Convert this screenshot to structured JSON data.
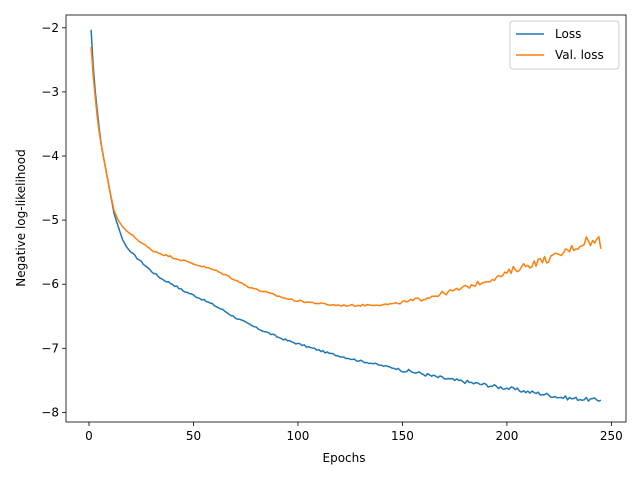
{
  "chart_data": {
    "type": "line",
    "title": "",
    "xlabel": "Epochs",
    "ylabel": "Negative log-likelihood",
    "xlim": [
      -11,
      257
    ],
    "ylim": [
      -8.15,
      -1.8
    ],
    "xticks": [
      0,
      50,
      100,
      150,
      200,
      250
    ],
    "yticks": [
      -8,
      -7,
      -6,
      -5,
      -4,
      -3,
      -2
    ],
    "grid": false,
    "legend_position": "top-right",
    "series": [
      {
        "name": "Loss",
        "color": "#1f77b4",
        "anchors": [
          [
            1,
            -2.03
          ],
          [
            2,
            -2.6
          ],
          [
            3,
            -3.0
          ],
          [
            4,
            -3.3
          ],
          [
            5,
            -3.6
          ],
          [
            6,
            -3.85
          ],
          [
            8,
            -4.2
          ],
          [
            10,
            -4.55
          ],
          [
            12,
            -4.9
          ],
          [
            14,
            -5.1
          ],
          [
            16,
            -5.3
          ],
          [
            18,
            -5.42
          ],
          [
            20,
            -5.5
          ],
          [
            25,
            -5.65
          ],
          [
            30,
            -5.8
          ],
          [
            35,
            -5.92
          ],
          [
            40,
            -6.0
          ],
          [
            45,
            -6.1
          ],
          [
            50,
            -6.17
          ],
          [
            55,
            -6.25
          ],
          [
            60,
            -6.33
          ],
          [
            65,
            -6.42
          ],
          [
            70,
            -6.52
          ],
          [
            75,
            -6.6
          ],
          [
            80,
            -6.68
          ],
          [
            85,
            -6.75
          ],
          [
            90,
            -6.82
          ],
          [
            95,
            -6.88
          ],
          [
            100,
            -6.93
          ],
          [
            105,
            -6.98
          ],
          [
            110,
            -7.03
          ],
          [
            115,
            -7.08
          ],
          [
            120,
            -7.12
          ],
          [
            125,
            -7.16
          ],
          [
            130,
            -7.2
          ],
          [
            135,
            -7.23
          ],
          [
            140,
            -7.27
          ],
          [
            145,
            -7.3
          ],
          [
            150,
            -7.34
          ],
          [
            155,
            -7.37
          ],
          [
            160,
            -7.4
          ],
          [
            165,
            -7.44
          ],
          [
            170,
            -7.47
          ],
          [
            175,
            -7.5
          ],
          [
            180,
            -7.52
          ],
          [
            185,
            -7.55
          ],
          [
            190,
            -7.57
          ],
          [
            195,
            -7.6
          ],
          [
            200,
            -7.62
          ],
          [
            205,
            -7.65
          ],
          [
            210,
            -7.68
          ],
          [
            215,
            -7.7
          ],
          [
            220,
            -7.73
          ],
          [
            225,
            -7.76
          ],
          [
            230,
            -7.78
          ],
          [
            235,
            -7.79
          ],
          [
            240,
            -7.8
          ],
          [
            245,
            -7.81
          ]
        ]
      },
      {
        "name": "Val. loss",
        "color": "#ff7f0e",
        "anchors": [
          [
            1,
            -2.3
          ],
          [
            2,
            -2.75
          ],
          [
            3,
            -3.1
          ],
          [
            4,
            -3.4
          ],
          [
            5,
            -3.65
          ],
          [
            6,
            -3.85
          ],
          [
            8,
            -4.2
          ],
          [
            10,
            -4.55
          ],
          [
            12,
            -4.85
          ],
          [
            14,
            -5.0
          ],
          [
            16,
            -5.1
          ],
          [
            18,
            -5.17
          ],
          [
            20,
            -5.22
          ],
          [
            25,
            -5.35
          ],
          [
            30,
            -5.47
          ],
          [
            35,
            -5.53
          ],
          [
            40,
            -5.58
          ],
          [
            45,
            -5.63
          ],
          [
            50,
            -5.68
          ],
          [
            55,
            -5.73
          ],
          [
            60,
            -5.78
          ],
          [
            65,
            -5.85
          ],
          [
            70,
            -5.93
          ],
          [
            75,
            -6.02
          ],
          [
            80,
            -6.08
          ],
          [
            85,
            -6.13
          ],
          [
            90,
            -6.18
          ],
          [
            95,
            -6.23
          ],
          [
            100,
            -6.26
          ],
          [
            105,
            -6.28
          ],
          [
            110,
            -6.3
          ],
          [
            115,
            -6.32
          ],
          [
            120,
            -6.33
          ],
          [
            125,
            -6.33
          ],
          [
            130,
            -6.33
          ],
          [
            135,
            -6.32
          ],
          [
            140,
            -6.32
          ],
          [
            145,
            -6.31
          ],
          [
            150,
            -6.29
          ],
          [
            155,
            -6.26
          ],
          [
            160,
            -6.22
          ],
          [
            165,
            -6.18
          ],
          [
            170,
            -6.14
          ],
          [
            175,
            -6.1
          ],
          [
            180,
            -6.05
          ],
          [
            185,
            -6.0
          ],
          [
            190,
            -5.95
          ],
          [
            195,
            -5.9
          ],
          [
            200,
            -5.83
          ],
          [
            205,
            -5.75
          ],
          [
            210,
            -5.7
          ],
          [
            215,
            -5.65
          ],
          [
            220,
            -5.6
          ],
          [
            225,
            -5.55
          ],
          [
            230,
            -5.45
          ],
          [
            235,
            -5.4
          ],
          [
            238,
            -5.3
          ],
          [
            240,
            -5.35
          ],
          [
            242,
            -5.35
          ],
          [
            244,
            -5.28
          ],
          [
            245,
            -5.45
          ]
        ]
      }
    ]
  }
}
